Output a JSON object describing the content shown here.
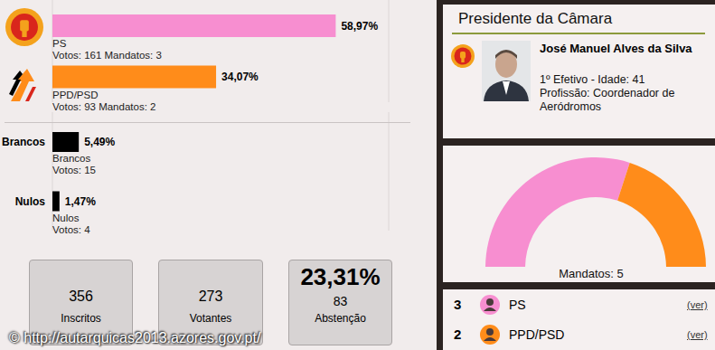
{
  "chart_data": [
    {
      "type": "bar",
      "orientation": "horizontal",
      "categories": [
        "PS",
        "PPD/PSD"
      ],
      "values": [
        58.97,
        34.07
      ],
      "value_labels": [
        "58,97%",
        "34,07%"
      ],
      "sublabels": [
        "Votos: 161 Mandatos: 3",
        "Votos: 93 Mandatos: 2"
      ],
      "colors": [
        "#f78ed0",
        "#ff8c1a"
      ],
      "xlim": [
        0,
        70
      ],
      "xticks": [
        0,
        10,
        20,
        30,
        40,
        50,
        60,
        70
      ],
      "grid": true,
      "data_labels": true,
      "tick_labels": false
    },
    {
      "type": "bar",
      "orientation": "horizontal",
      "categories": [
        "Brancos",
        "Nulos"
      ],
      "values": [
        5.49,
        1.47
      ],
      "value_labels": [
        "5,49%",
        "1,47%"
      ],
      "sublabels": [
        "Votos: 15",
        "Votos: 4"
      ],
      "color": "#000000",
      "xlim": [
        0,
        70
      ],
      "xticks": [
        0,
        10,
        20,
        30,
        40,
        50,
        60,
        70
      ],
      "grid": true,
      "data_labels": true,
      "tick_labels": "y"
    },
    {
      "type": "pie",
      "title": "Mandatos: 5",
      "categories": [
        "PS",
        "PPD/PSD"
      ],
      "values": [
        3,
        2
      ],
      "colors": [
        "#f78ed0",
        "#ff8c1a"
      ]
    }
  ],
  "stats": [
    {
      "value": 356,
      "label": "Inscritos"
    },
    {
      "value": 273,
      "label": "Votantes"
    },
    {
      "percent": "23,31%",
      "value": 83,
      "label": "Abstenção"
    }
  ],
  "president": {
    "heading": "Presidente da Câmara",
    "name": "José Manuel Alves da Silva",
    "details": [
      "1º Efetivo - Idade: 41",
      "Profissão: Coordenador de Aeródromos"
    ]
  },
  "seats_list": {
    "rows": [
      {
        "seats": 3,
        "party": "PS"
      },
      {
        "seats": 2,
        "party": "PPD/PSD"
      }
    ],
    "link": "(ver)"
  },
  "watermark": "© http://autarquicas2013.azores.gov.pt/"
}
